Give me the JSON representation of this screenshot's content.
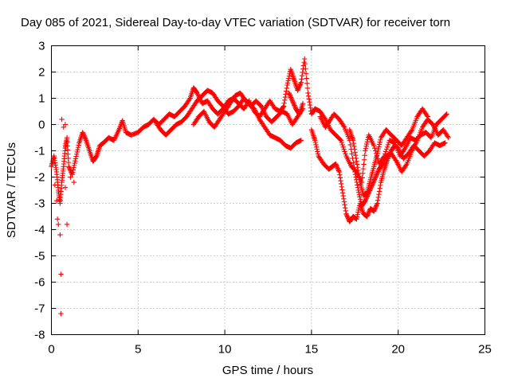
{
  "chart_data": {
    "type": "scatter",
    "title": "Day 085 of 2021, Sidereal Day-to-day VTEC variation (SDTVAR) for receiver torn",
    "xlabel": "GPS time / hours",
    "ylabel": "SDTVAR / TECUs",
    "xlim": [
      0,
      25
    ],
    "ylim": [
      -8,
      3
    ],
    "xticks": [
      0,
      5,
      10,
      15,
      20,
      25
    ],
    "yticks": [
      -8,
      -7,
      -6,
      -5,
      -4,
      -3,
      -2,
      -1,
      0,
      1,
      2,
      3
    ],
    "grid": true,
    "marker": "+",
    "series": [
      {
        "name": "SDTVAR",
        "color": "#ff0000",
        "segments": [
          [
            [
              0.0,
              -1.6
            ],
            [
              0.15,
              -1.2
            ],
            [
              0.3,
              -1.8
            ],
            [
              0.4,
              -2.5
            ],
            [
              0.5,
              -3.0
            ],
            [
              0.6,
              -2.2
            ],
            [
              0.7,
              -1.6
            ],
            [
              0.8,
              -0.9
            ],
            [
              0.9,
              -0.5
            ],
            [
              1.0,
              -1.6
            ],
            [
              1.2,
              -1.9
            ],
            [
              1.4,
              -1.3
            ],
            [
              1.6,
              -0.7
            ],
            [
              1.8,
              -0.3
            ],
            [
              2.0,
              -0.6
            ],
            [
              2.2,
              -1.0
            ],
            [
              2.4,
              -1.4
            ],
            [
              2.6,
              -1.2
            ],
            [
              2.8,
              -0.8
            ],
            [
              3.0,
              -0.7
            ],
            [
              3.3,
              -0.5
            ],
            [
              3.6,
              -0.6
            ],
            [
              3.9,
              -0.2
            ],
            [
              4.1,
              0.15
            ],
            [
              4.3,
              -0.3
            ],
            [
              4.6,
              -0.4
            ],
            [
              5.0,
              -0.3
            ],
            [
              5.3,
              -0.1
            ],
            [
              5.6,
              0.0
            ],
            [
              5.9,
              0.2
            ],
            [
              6.2,
              0.0
            ],
            [
              6.5,
              0.2
            ],
            [
              6.8,
              0.4
            ],
            [
              7.1,
              0.3
            ],
            [
              7.4,
              0.5
            ],
            [
              7.7,
              0.7
            ],
            [
              8.0,
              1.0
            ],
            [
              8.2,
              1.4
            ],
            [
              8.4,
              1.2
            ],
            [
              8.7,
              0.8
            ],
            [
              9.0,
              0.9
            ],
            [
              9.3,
              0.6
            ],
            [
              9.6,
              0.4
            ],
            [
              9.9,
              0.6
            ],
            [
              10.2,
              0.9
            ],
            [
              10.5,
              1.0
            ],
            [
              10.8,
              0.8
            ],
            [
              11.1,
              0.6
            ],
            [
              11.4,
              0.9
            ],
            [
              11.7,
              0.5
            ],
            [
              12.0,
              0.3
            ],
            [
              12.3,
              0.6
            ],
            [
              12.6,
              0.9
            ],
            [
              12.9,
              0.6
            ],
            [
              13.2,
              0.5
            ],
            [
              13.4,
              0.7
            ],
            [
              13.6,
              1.5
            ],
            [
              13.8,
              2.1
            ],
            [
              14.0,
              1.7
            ],
            [
              14.2,
              1.3
            ],
            [
              14.4,
              1.6
            ],
            [
              14.6,
              2.5
            ],
            [
              14.8,
              1.2
            ],
            [
              15.0,
              0.4
            ],
            [
              15.2,
              0.6
            ],
            [
              15.5,
              0.5
            ],
            [
              15.8,
              0.2
            ],
            [
              16.1,
              -0.2
            ],
            [
              16.4,
              -0.4
            ],
            [
              16.7,
              -0.6
            ],
            [
              17.0,
              -1.2
            ],
            [
              17.3,
              -1.6
            ],
            [
              17.6,
              -1.8
            ],
            [
              17.9,
              -2.2
            ],
            [
              18.1,
              -1.0
            ],
            [
              18.3,
              -0.4
            ],
            [
              18.6,
              -0.8
            ],
            [
              18.9,
              -1.5
            ],
            [
              19.2,
              -1.2
            ],
            [
              19.5,
              -0.6
            ],
            [
              19.8,
              -0.7
            ],
            [
              20.1,
              -1.2
            ],
            [
              20.4,
              -0.9
            ],
            [
              20.7,
              -0.5
            ],
            [
              21.0,
              -0.6
            ],
            [
              21.3,
              -0.4
            ],
            [
              21.6,
              -0.3
            ],
            [
              21.9,
              -0.5
            ],
            [
              22.2,
              0.0
            ],
            [
              22.5,
              0.2
            ],
            [
              22.8,
              0.4
            ]
          ],
          [
            [
              6.0,
              0.1
            ],
            [
              6.3,
              -0.2
            ],
            [
              6.6,
              -0.4
            ],
            [
              6.9,
              -0.2
            ],
            [
              7.2,
              0.0
            ],
            [
              7.5,
              0.1
            ],
            [
              7.8,
              0.3
            ],
            [
              8.1,
              0.6
            ],
            [
              8.4,
              0.9
            ],
            [
              8.7,
              1.1
            ],
            [
              9.0,
              1.3
            ],
            [
              9.3,
              1.2
            ],
            [
              9.6,
              0.9
            ],
            [
              9.9,
              0.7
            ],
            [
              10.2,
              0.4
            ],
            [
              10.5,
              0.5
            ],
            [
              10.8,
              0.7
            ],
            [
              11.1,
              1.0
            ],
            [
              11.4,
              0.8
            ],
            [
              11.7,
              0.6
            ],
            [
              12.0,
              0.2
            ],
            [
              12.3,
              -0.1
            ],
            [
              12.6,
              -0.4
            ],
            [
              12.9,
              -0.5
            ],
            [
              13.2,
              -0.6
            ],
            [
              13.5,
              -0.8
            ],
            [
              13.8,
              -0.9
            ],
            [
              14.1,
              -0.7
            ],
            [
              14.4,
              -0.6
            ]
          ],
          [
            [
              8.2,
              0.0
            ],
            [
              8.5,
              0.3
            ],
            [
              8.8,
              0.5
            ],
            [
              9.1,
              0.1
            ],
            [
              9.4,
              -0.1
            ],
            [
              9.7,
              0.2
            ],
            [
              10.0,
              0.5
            ],
            [
              10.3,
              0.8
            ],
            [
              10.6,
              1.1
            ],
            [
              10.9,
              1.2
            ],
            [
              11.2,
              0.9
            ],
            [
              11.5,
              0.7
            ],
            [
              11.8,
              0.9
            ],
            [
              12.1,
              0.7
            ],
            [
              12.4,
              0.3
            ],
            [
              12.7,
              0.1
            ],
            [
              13.0,
              0.3
            ],
            [
              13.3,
              0.5
            ],
            [
              13.6,
              0.4
            ],
            [
              13.9,
              0.0
            ],
            [
              14.2,
              0.3
            ],
            [
              14.5,
              0.6
            ]
          ],
          [
            [
              13.7,
              1.2
            ],
            [
              13.9,
              0.9
            ],
            [
              14.1,
              0.6
            ],
            [
              14.3,
              0.4
            ],
            [
              14.5,
              0.8
            ]
          ],
          [
            [
              15.0,
              -0.2
            ],
            [
              15.2,
              -0.6
            ],
            [
              15.4,
              -1.2
            ],
            [
              15.7,
              -1.5
            ],
            [
              16.0,
              -1.7
            ],
            [
              16.2,
              -1.6
            ],
            [
              16.4,
              -1.5
            ],
            [
              16.6,
              -1.8
            ],
            [
              16.8,
              -2.6
            ],
            [
              17.0,
              -3.4
            ],
            [
              17.2,
              -3.7
            ],
            [
              17.4,
              -3.5
            ],
            [
              17.6,
              -3.6
            ],
            [
              17.8,
              -3.0
            ],
            [
              18.0,
              -3.4
            ],
            [
              18.2,
              -3.5
            ],
            [
              18.4,
              -3.2
            ],
            [
              18.6,
              -3.3
            ],
            [
              18.8,
              -3.0
            ],
            [
              19.0,
              -2.2
            ],
            [
              19.2,
              -1.7
            ],
            [
              19.4,
              -1.3
            ],
            [
              19.6,
              -1.0
            ],
            [
              19.8,
              -0.8
            ],
            [
              20.0,
              -0.9
            ],
            [
              20.3,
              -1.3
            ],
            [
              20.6,
              -1.1
            ],
            [
              20.9,
              -0.8
            ],
            [
              21.2,
              -1.0
            ],
            [
              21.5,
              -1.2
            ],
            [
              21.8,
              -1.0
            ],
            [
              22.1,
              -0.7
            ],
            [
              22.4,
              -0.8
            ],
            [
              22.7,
              -0.7
            ]
          ],
          [
            [
              15.5,
              0.3
            ],
            [
              15.8,
              -0.1
            ],
            [
              16.0,
              0.1
            ],
            [
              16.3,
              0.4
            ],
            [
              16.6,
              0.2
            ],
            [
              16.9,
              -0.1
            ],
            [
              17.2,
              -0.6
            ],
            [
              17.5,
              -1.8
            ],
            [
              17.7,
              -2.5
            ],
            [
              17.9,
              -3.1
            ],
            [
              18.1,
              -2.9
            ],
            [
              18.3,
              -2.6
            ],
            [
              18.5,
              -2.3
            ],
            [
              18.7,
              -2.0
            ],
            [
              18.9,
              -1.7
            ],
            [
              19.1,
              -1.5
            ],
            [
              19.3,
              -1.2
            ],
            [
              19.6,
              -1.1
            ],
            [
              19.9,
              -1.4
            ],
            [
              20.2,
              -1.8
            ],
            [
              20.5,
              -1.5
            ],
            [
              20.8,
              -1.0
            ],
            [
              21.1,
              -0.6
            ],
            [
              21.4,
              -0.1
            ],
            [
              21.7,
              0.2
            ],
            [
              22.0,
              0.0
            ],
            [
              22.3,
              -0.4
            ],
            [
              22.6,
              -0.2
            ],
            [
              22.9,
              -0.5
            ]
          ],
          [
            [
              17.2,
              -0.2
            ],
            [
              17.4,
              -0.6
            ],
            [
              17.6,
              -1.4
            ],
            [
              17.8,
              -2.2
            ],
            [
              18.0,
              -2.7
            ],
            [
              18.2,
              -2.6
            ],
            [
              18.4,
              -2.1
            ],
            [
              18.6,
              -1.6
            ],
            [
              18.8,
              -1.1
            ],
            [
              19.0,
              -0.5
            ],
            [
              19.3,
              -0.2
            ],
            [
              19.6,
              -0.4
            ],
            [
              19.9,
              -0.6
            ],
            [
              20.2,
              -0.8
            ],
            [
              20.5,
              -0.5
            ],
            [
              20.8,
              -0.2
            ],
            [
              21.1,
              0.3
            ],
            [
              21.4,
              0.6
            ],
            [
              21.7,
              0.3
            ]
          ],
          [
            [
              0.2,
              -2.3
            ],
            [
              0.3,
              -2.9
            ],
            [
              0.35,
              -3.6
            ],
            [
              0.4,
              -3.8
            ],
            [
              0.5,
              -4.2
            ],
            [
              0.55,
              -5.7
            ],
            [
              0.55,
              -7.2
            ],
            [
              0.9,
              -3.8
            ],
            [
              0.8,
              -2.4
            ],
            [
              1.1,
              -2.0
            ],
            [
              1.3,
              -2.2
            ],
            [
              0.6,
              0.2
            ],
            [
              0.7,
              -0.1
            ],
            [
              0.8,
              0.0
            ]
          ]
        ]
      }
    ]
  }
}
